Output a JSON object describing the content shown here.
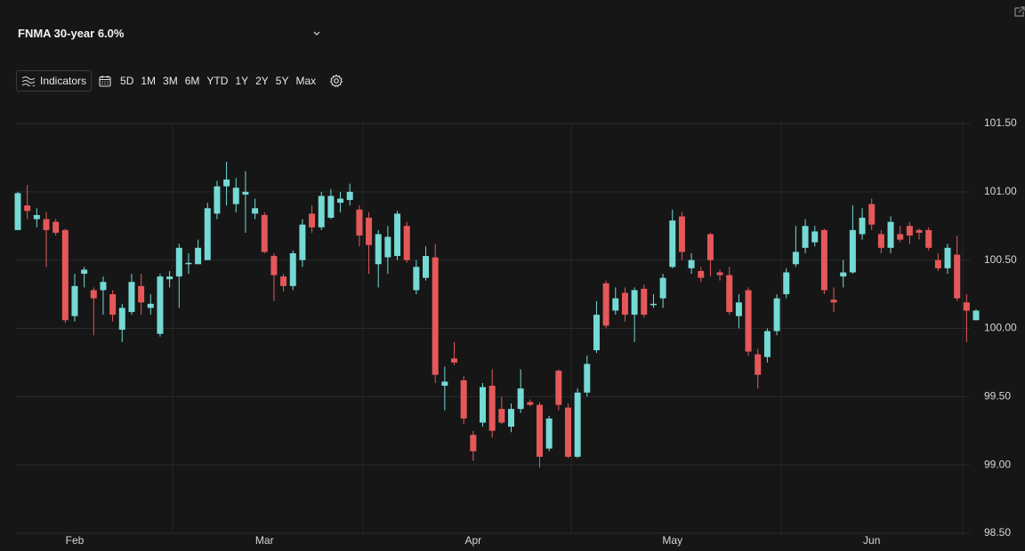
{
  "chart_data": {
    "type": "candlestick",
    "title": "FNMA 30-year 6.0%",
    "categories": [
      null,
      null,
      null,
      null,
      null,
      null,
      "Feb",
      null,
      null,
      null,
      null,
      null,
      null,
      null,
      null,
      null,
      null,
      null,
      null,
      null,
      null,
      null,
      null,
      null,
      null,
      null,
      "Mar",
      null,
      null,
      null,
      null,
      null,
      null,
      null,
      null,
      null,
      null,
      null,
      null,
      null,
      null,
      null,
      null,
      null,
      null,
      null,
      null,
      null,
      "Apr",
      null,
      null,
      null,
      null,
      null,
      null,
      null,
      null,
      null,
      null,
      null,
      null,
      null,
      null,
      null,
      null,
      null,
      null,
      null,
      null,
      "May",
      null,
      null,
      null,
      null,
      null,
      null,
      null,
      null,
      null,
      null,
      null,
      null,
      null,
      null,
      null,
      null,
      null,
      null,
      null,
      null,
      "Jun",
      null,
      null,
      null,
      null,
      null,
      null,
      null,
      null,
      null,
      null,
      null
    ],
    "open": [
      100.72,
      100.9,
      100.8,
      100.8,
      100.78,
      100.72,
      100.09,
      100.4,
      100.28,
      100.28,
      100.25,
      99.99,
      100.12,
      100.31,
      100.15,
      99.96,
      100.36,
      100.38,
      100.47,
      100.47,
      100.5,
      100.84,
      101.04,
      100.91,
      100.98,
      100.84,
      100.83,
      100.53,
      100.38,
      100.31,
      100.5,
      100.84,
      100.74,
      100.81,
      100.92,
      100.94,
      100.87,
      100.81,
      100.47,
      100.52,
      100.53,
      100.75,
      100.28,
      100.37,
      100.52,
      99.58,
      99.78,
      99.62,
      99.22,
      99.31,
      99.58,
      99.41,
      99.28,
      99.41,
      99.46,
      99.44,
      99.12,
      99.69,
      99.42,
      99.06,
      99.53,
      99.84,
      100.33,
      100.13,
      100.26,
      100.1,
      100.29,
      100.17,
      100.22,
      100.45,
      100.82,
      100.44,
      100.42,
      100.69,
      100.41,
      100.39,
      100.09,
      100.28,
      99.81,
      99.79,
      99.98,
      100.25,
      100.47,
      100.59,
      100.63,
      100.72,
      100.21,
      100.38,
      100.41,
      100.69,
      100.91,
      100.69,
      100.59,
      100.69,
      100.75,
      100.72,
      100.72,
      100.5,
      100.44,
      100.54,
      100.19,
      100.06
    ],
    "high": [
      101.0,
      101.05,
      100.88,
      100.85,
      100.8,
      100.73,
      100.4,
      100.45,
      100.3,
      100.38,
      100.28,
      100.18,
      100.4,
      100.4,
      100.25,
      100.4,
      100.42,
      100.62,
      100.55,
      100.65,
      100.92,
      101.08,
      101.22,
      101.1,
      101.15,
      100.95,
      100.85,
      100.55,
      100.4,
      100.57,
      100.8,
      100.9,
      101.0,
      101.02,
      101.0,
      101.06,
      100.9,
      100.85,
      100.72,
      100.75,
      100.86,
      100.78,
      100.5,
      100.6,
      100.62,
      99.72,
      99.9,
      99.65,
      99.25,
      99.6,
      99.7,
      99.5,
      99.45,
      99.7,
      99.48,
      99.46,
      99.36,
      99.7,
      99.45,
      99.56,
      99.8,
      100.2,
      100.35,
      100.3,
      100.3,
      100.3,
      100.32,
      100.25,
      100.4,
      100.87,
      100.85,
      100.55,
      100.45,
      100.7,
      100.43,
      100.45,
      100.25,
      100.3,
      99.85,
      100.0,
      100.25,
      100.44,
      100.75,
      100.8,
      100.75,
      100.73,
      100.3,
      100.5,
      100.9,
      100.88,
      100.95,
      100.72,
      100.82,
      100.75,
      100.78,
      100.73,
      100.74,
      100.55,
      100.62,
      100.68,
      100.25,
      100.14
    ],
    "low": [
      100.72,
      100.8,
      100.74,
      100.45,
      100.68,
      100.04,
      100.05,
      100.3,
      99.95,
      100.1,
      100.05,
      99.9,
      100.1,
      100.1,
      100.1,
      99.94,
      100.3,
      100.15,
      100.4,
      100.47,
      100.5,
      100.8,
      100.9,
      100.85,
      100.7,
      100.8,
      100.55,
      100.2,
      100.27,
      100.28,
      100.45,
      100.7,
      100.72,
      100.8,
      100.85,
      100.9,
      100.6,
      100.4,
      100.3,
      100.4,
      100.5,
      100.48,
      100.25,
      100.35,
      99.6,
      99.4,
      99.73,
      99.3,
      99.03,
      99.28,
      99.2,
      99.3,
      99.24,
      99.38,
      99.43,
      98.98,
      99.1,
      99.4,
      99.05,
      99.05,
      99.5,
      99.82,
      100.0,
      100.1,
      100.05,
      99.9,
      100.08,
      100.15,
      100.15,
      100.44,
      100.5,
      100.4,
      100.34,
      100.38,
      100.35,
      100.1,
      100.0,
      99.8,
      99.56,
      99.75,
      99.95,
      100.22,
      100.45,
      100.55,
      100.6,
      100.25,
      100.12,
      100.3,
      100.4,
      100.65,
      100.72,
      100.55,
      100.55,
      100.63,
      100.62,
      100.65,
      100.57,
      100.42,
      100.4,
      100.2,
      99.9,
      100.06
    ],
    "close": [
      100.99,
      100.86,
      100.83,
      100.72,
      100.7,
      100.06,
      100.31,
      100.43,
      100.22,
      100.34,
      100.1,
      100.15,
      100.34,
      100.19,
      100.18,
      100.38,
      100.38,
      100.59,
      100.48,
      100.59,
      100.88,
      101.04,
      101.09,
      101.03,
      101.0,
      100.88,
      100.56,
      100.39,
      100.31,
      100.55,
      100.76,
      100.74,
      100.97,
      100.97,
      100.95,
      101.0,
      100.68,
      100.61,
      100.69,
      100.67,
      100.84,
      100.5,
      100.45,
      100.53,
      99.66,
      99.61,
      99.75,
      99.34,
      99.1,
      99.57,
      99.25,
      99.31,
      99.41,
      99.56,
      99.44,
      99.06,
      99.34,
      99.44,
      99.06,
      99.53,
      99.74,
      100.1,
      100.02,
      100.22,
      100.1,
      100.28,
      100.1,
      100.18,
      100.37,
      100.79,
      100.56,
      100.5,
      100.37,
      100.5,
      100.39,
      100.12,
      100.19,
      99.83,
      99.66,
      99.98,
      100.22,
      100.41,
      100.56,
      100.75,
      100.71,
      100.28,
      100.19,
      100.41,
      100.72,
      100.81,
      100.76,
      100.59,
      100.78,
      100.65,
      100.68,
      100.7,
      100.59,
      100.44,
      100.59,
      100.22,
      100.13,
      100.13
    ],
    "up_color": "#75d9d4",
    "down_color": "#e5585a",
    "ylim": [
      98.5,
      101.5
    ],
    "yticks": [
      {
        "value": 98.5,
        "label": "98.50"
      },
      {
        "value": 99,
        "label": "99.00"
      },
      {
        "value": 99.5,
        "label": "99.50"
      },
      {
        "value": 100,
        "label": "100.00"
      },
      {
        "value": 100.5,
        "label": "100.50"
      },
      {
        "value": 101,
        "label": "101.00"
      },
      {
        "value": 101.5,
        "label": "101.50"
      }
    ],
    "grid": true
  },
  "toolbar": {
    "indicators": "Indicators",
    "ranges": [
      "5D",
      "1M",
      "3M",
      "6M",
      "YTD",
      "1Y",
      "2Y",
      "5Y",
      "Max"
    ]
  }
}
